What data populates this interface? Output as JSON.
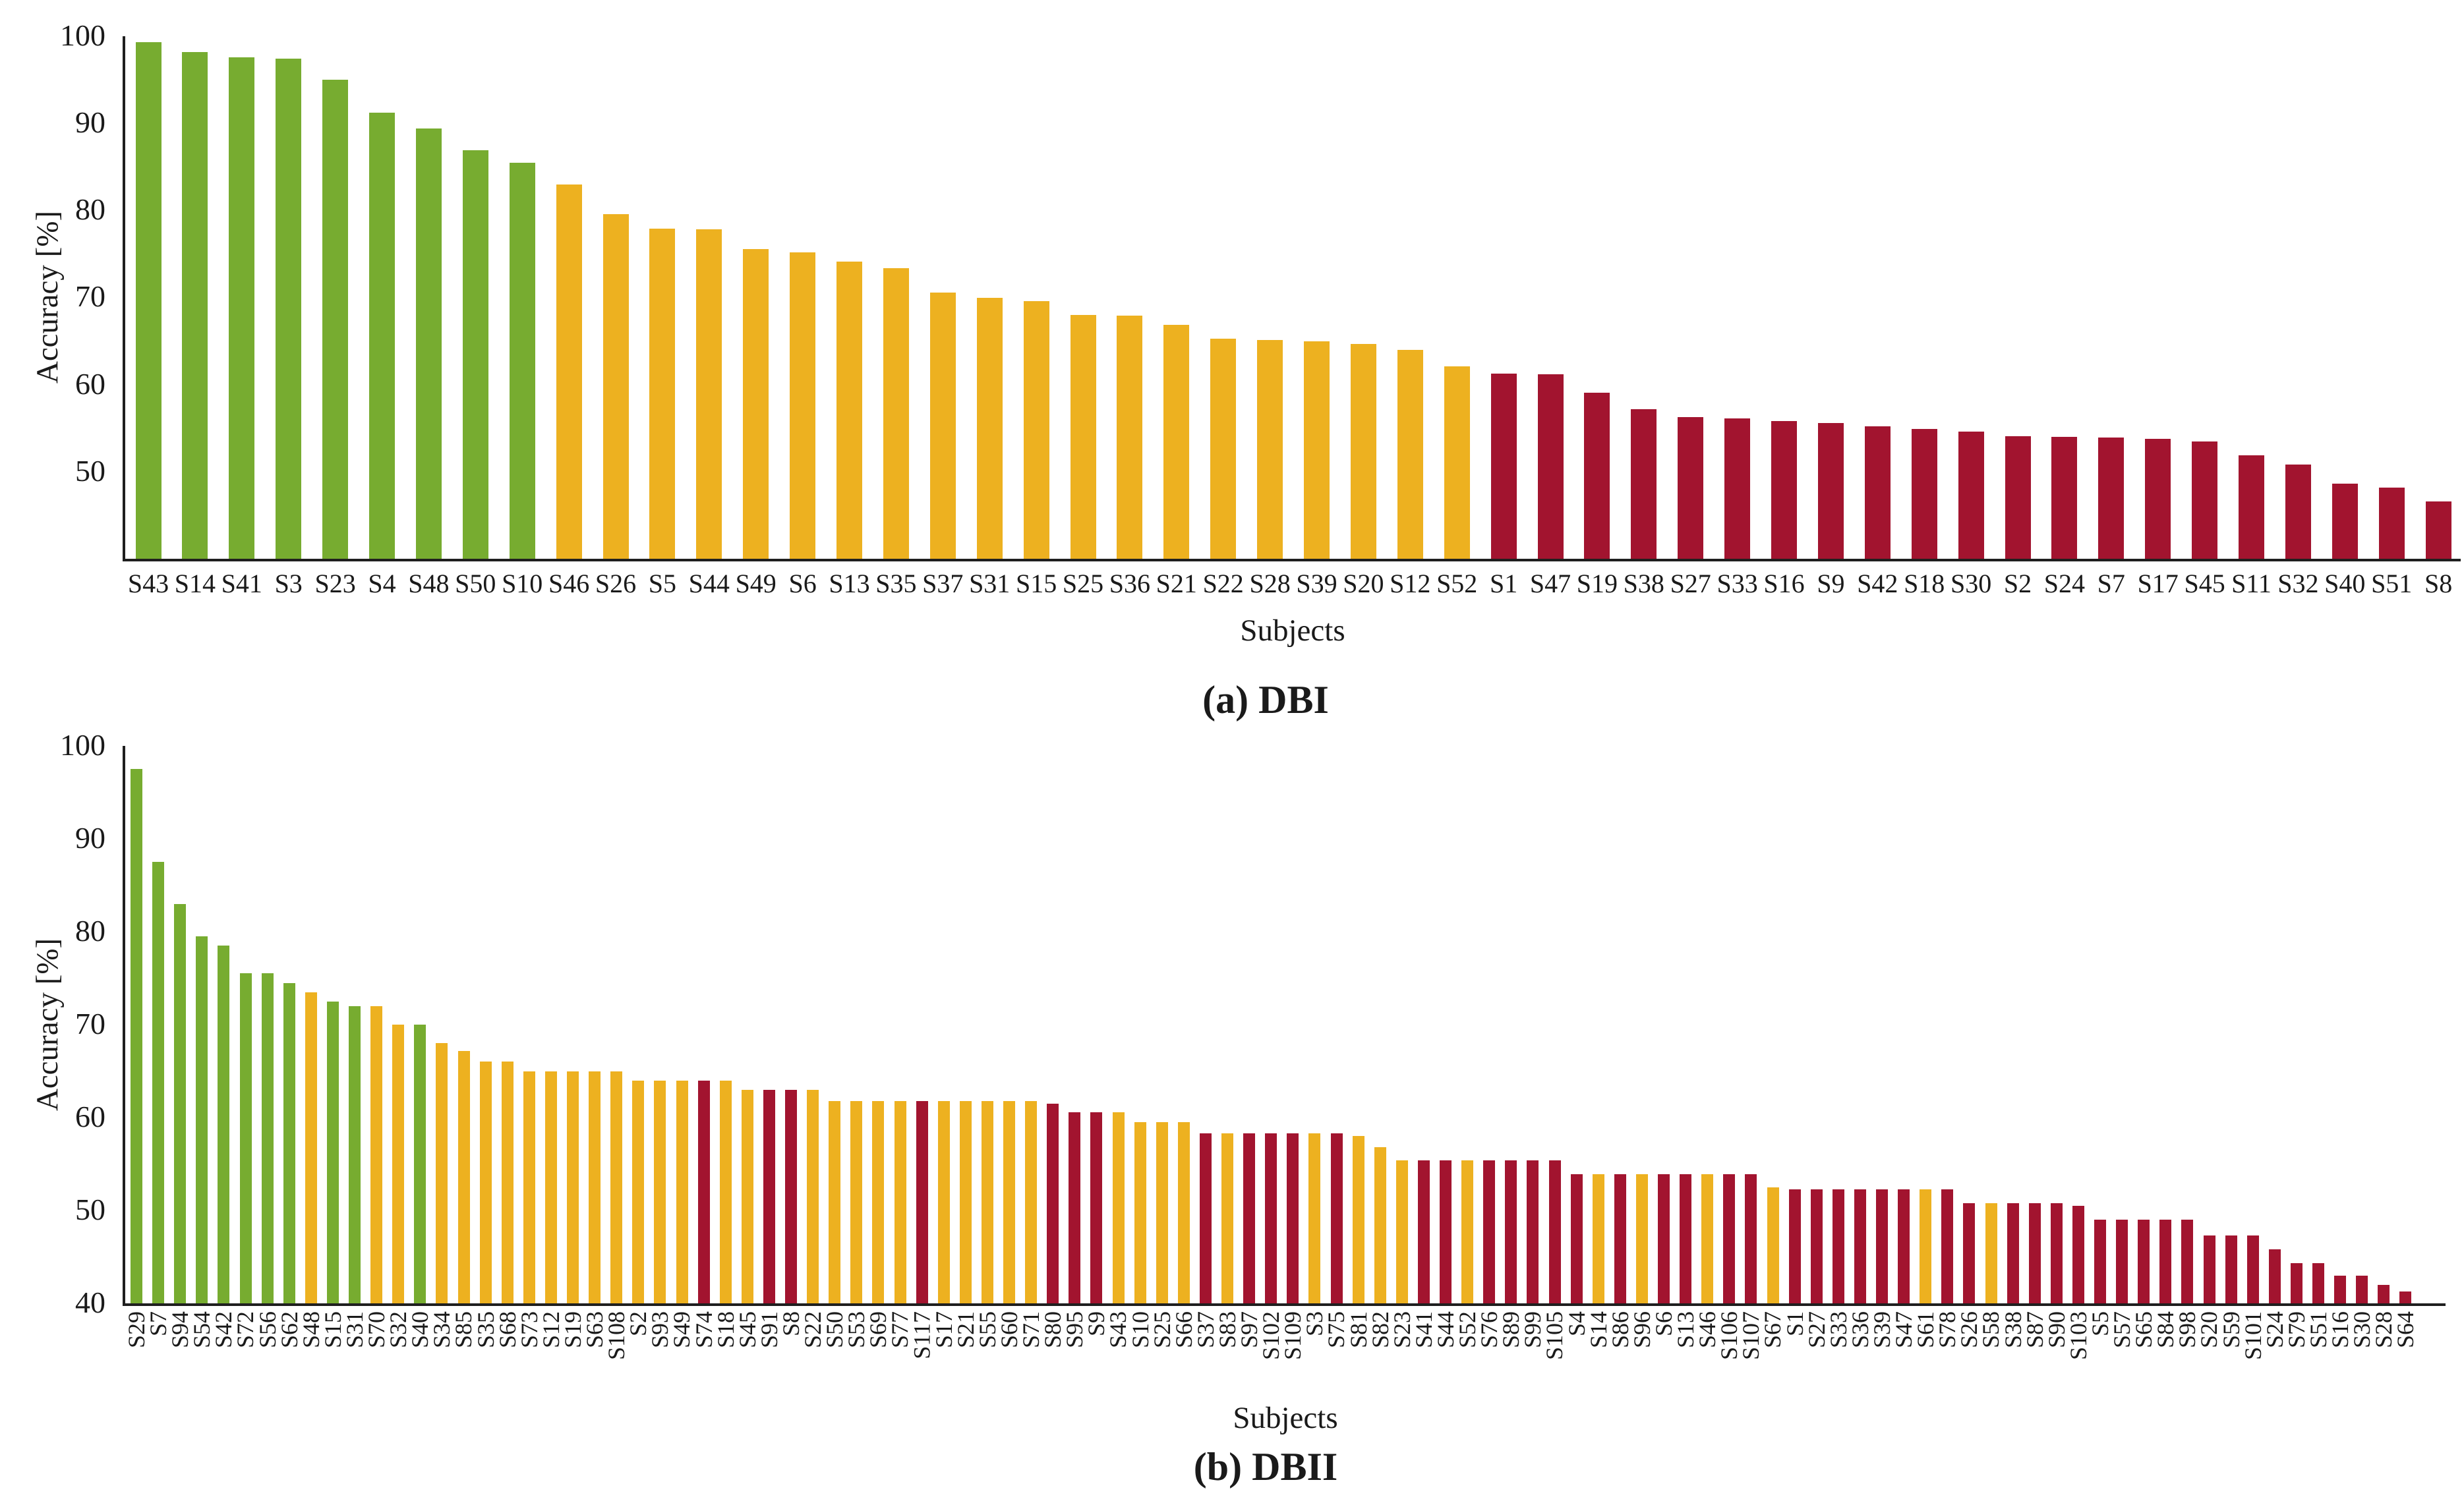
{
  "palette": {
    "green": "#77AC30",
    "yellow": "#EDB120",
    "red": "#A2142F",
    "axis": "#1f1f1f"
  },
  "chart_data": [
    {
      "type": "bar",
      "caption": "(a) DBI",
      "xlabel": "Subjects",
      "ylabel": "Accuracy [%]",
      "ylim": [
        40,
        100
      ],
      "yticks": [
        50,
        60,
        70,
        80,
        90,
        100
      ],
      "grid": false,
      "legend": null,
      "tick_label_rotation": 0,
      "categories": [
        "S43",
        "S14",
        "S41",
        "S3",
        "S23",
        "S4",
        "S48",
        "S50",
        "S10",
        "S46",
        "S26",
        "S5",
        "S44",
        "S49",
        "S6",
        "S13",
        "S35",
        "S37",
        "S31",
        "S15",
        "S25",
        "S36",
        "S21",
        "S22",
        "S28",
        "S39",
        "S20",
        "S12",
        "S52",
        "S1",
        "S47",
        "S19",
        "S38",
        "S27",
        "S33",
        "S16",
        "S9",
        "S42",
        "S18",
        "S30",
        "S2",
        "S24",
        "S7",
        "S17",
        "S45",
        "S11",
        "S32",
        "S40",
        "S51",
        "S8"
      ],
      "values": [
        99.3,
        98.2,
        97.6,
        97.4,
        95.0,
        91.2,
        89.4,
        86.9,
        85.5,
        83.0,
        79.6,
        77.9,
        77.8,
        75.6,
        75.2,
        74.1,
        73.4,
        70.6,
        70.0,
        69.6,
        68.0,
        67.9,
        66.9,
        65.3,
        65.1,
        65.0,
        64.7,
        64.0,
        62.1,
        61.3,
        61.2,
        59.1,
        57.2,
        56.3,
        56.1,
        55.8,
        55.6,
        55.2,
        54.9,
        54.6,
        54.1,
        54.0,
        53.9,
        53.8,
        53.5,
        51.9,
        50.8,
        48.6,
        48.2,
        46.6
      ],
      "bar_colors": [
        "green",
        "green",
        "green",
        "green",
        "green",
        "green",
        "green",
        "green",
        "green",
        "yellow",
        "yellow",
        "yellow",
        "yellow",
        "yellow",
        "yellow",
        "yellow",
        "yellow",
        "yellow",
        "yellow",
        "yellow",
        "yellow",
        "yellow",
        "yellow",
        "yellow",
        "yellow",
        "yellow",
        "yellow",
        "yellow",
        "yellow",
        "red",
        "red",
        "red",
        "red",
        "red",
        "red",
        "red",
        "red",
        "red",
        "red",
        "red",
        "red",
        "red",
        "red",
        "red",
        "red",
        "red",
        "red",
        "red",
        "red",
        "red"
      ]
    },
    {
      "type": "bar",
      "caption": "(b) DBII",
      "xlabel": "Subjects",
      "ylabel": "Accuracy [%]",
      "ylim": [
        40,
        100
      ],
      "yticks": [
        40,
        50,
        60,
        70,
        80,
        90,
        100
      ],
      "grid": false,
      "legend": null,
      "tick_label_rotation": 90,
      "categories": [
        "S29",
        "S7",
        "S94",
        "S54",
        "S42",
        "S72",
        "S56",
        "S62",
        "S48",
        "S15",
        "S31",
        "S70",
        "S32",
        "S40",
        "S34",
        "S85",
        "S35",
        "S68",
        "S73",
        "S12",
        "S19",
        "S63",
        "S108",
        "S2",
        "S93",
        "S49",
        "S74",
        "S18",
        "S45",
        "S91",
        "S8",
        "S22",
        "S50",
        "S53",
        "S69",
        "S77",
        "S117",
        "S17",
        "S21",
        "S55",
        "S60",
        "S71",
        "S80",
        "S95",
        "S9",
        "S43",
        "S10",
        "S25",
        "S66",
        "S37",
        "S83",
        "S97",
        "S102",
        "S109",
        "S3",
        "S75",
        "S81",
        "S82",
        "S23",
        "S41",
        "S44",
        "S52",
        "S76",
        "S89",
        "S99",
        "S105",
        "S4",
        "S14",
        "S86",
        "S96",
        "S6",
        "S13",
        "S46",
        "S106",
        "S107",
        "S67",
        "S1",
        "S27",
        "S33",
        "S36",
        "S39",
        "S47",
        "S61",
        "S78",
        "S26",
        "S58",
        "S38",
        "S87",
        "S90",
        "S103",
        "S5",
        "S57",
        "S65",
        "S84",
        "S98",
        "S20",
        "S59",
        "S101",
        "S24",
        "S79",
        "S51",
        "S16",
        "S30",
        "S28",
        "S64"
      ],
      "values": [
        97.5,
        87.5,
        83,
        79.5,
        78.5,
        75.5,
        75.5,
        74.5,
        73.5,
        72.5,
        72,
        72,
        70,
        70,
        68,
        67.2,
        66,
        66,
        65,
        65,
        65,
        65,
        65,
        64,
        64,
        64,
        64,
        64,
        63,
        63,
        63,
        63,
        61.8,
        61.8,
        61.8,
        61.8,
        61.8,
        61.8,
        61.8,
        61.8,
        61.8,
        61.8,
        61.5,
        60.6,
        60.6,
        60.6,
        59.5,
        59.5,
        59.5,
        58.3,
        58.3,
        58.3,
        58.3,
        58.3,
        58.3,
        58.3,
        58,
        56.8,
        55.4,
        55.4,
        55.4,
        55.4,
        55.4,
        55.4,
        55.4,
        55.4,
        53.9,
        53.9,
        53.9,
        53.9,
        53.9,
        53.9,
        53.9,
        53.9,
        53.9,
        52.5,
        52.3,
        52.3,
        52.3,
        52.3,
        52.3,
        52.3,
        52.3,
        52.3,
        50.8,
        50.8,
        50.8,
        50.8,
        50.8,
        50.5,
        49,
        49,
        49,
        49,
        49,
        47.3,
        47.3,
        47.3,
        45.8,
        44.3,
        44.3,
        43,
        43,
        42,
        41.3
      ],
      "bar_colors": [
        "green",
        "green",
        "green",
        "green",
        "green",
        "green",
        "green",
        "green",
        "yellow",
        "green",
        "green",
        "yellow",
        "yellow",
        "green",
        "yellow",
        "yellow",
        "yellow",
        "yellow",
        "yellow",
        "yellow",
        "yellow",
        "yellow",
        "yellow",
        "yellow",
        "yellow",
        "yellow",
        "red",
        "yellow",
        "yellow",
        "red",
        "red",
        "yellow",
        "yellow",
        "yellow",
        "yellow",
        "yellow",
        "red",
        "yellow",
        "yellow",
        "yellow",
        "yellow",
        "yellow",
        "red",
        "red",
        "red",
        "yellow",
        "yellow",
        "yellow",
        "yellow",
        "red",
        "yellow",
        "red",
        "red",
        "red",
        "yellow",
        "red",
        "yellow",
        "yellow",
        "yellow",
        "red",
        "red",
        "yellow",
        "red",
        "red",
        "red",
        "red",
        "red",
        "yellow",
        "red",
        "yellow",
        "red",
        "red",
        "yellow",
        "red",
        "red",
        "yellow",
        "red",
        "red",
        "red",
        "red",
        "red",
        "red",
        "yellow",
        "red",
        "red",
        "yellow",
        "red",
        "red",
        "red",
        "red",
        "red",
        "red",
        "red",
        "red",
        "red",
        "red",
        "red",
        "red",
        "red",
        "red",
        "red",
        "red",
        "red",
        "red",
        "red"
      ]
    }
  ]
}
